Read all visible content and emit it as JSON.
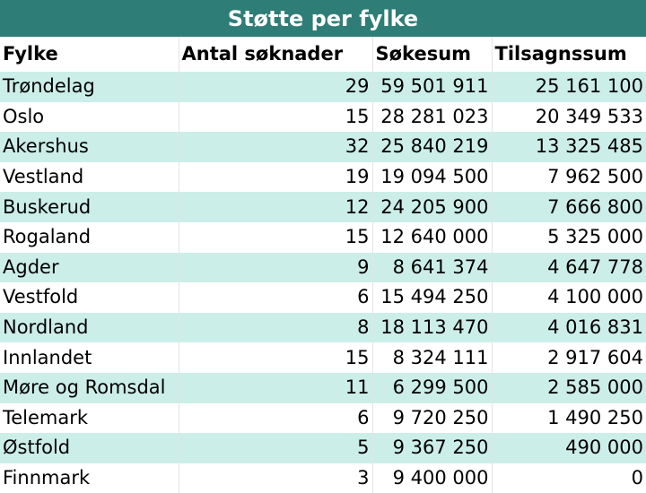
{
  "chart_data": {
    "type": "table",
    "title": "Støtte per fylke",
    "columns": [
      "Fylke",
      "Antal søknader",
      "Søkesum",
      "Tilsagnssum"
    ],
    "rows": [
      [
        "Trøndelag",
        "29",
        "59 501 911",
        "25 161 100"
      ],
      [
        "Oslo",
        "15",
        "28 281 023",
        "20 349 533"
      ],
      [
        "Akershus",
        "32",
        "25 840 219",
        "13 325 485"
      ],
      [
        "Vestland",
        "19",
        "19 094 500",
        "7 962 500"
      ],
      [
        "Buskerud",
        "12",
        "24 205 900",
        "7 666 800"
      ],
      [
        "Rogaland",
        "15",
        "12 640 000",
        "5 325 000"
      ],
      [
        "Agder",
        "9",
        "8 641 374",
        "4 647 778"
      ],
      [
        "Vestfold",
        "6",
        "15 494 250",
        "4 100 000"
      ],
      [
        "Nordland",
        "8",
        "18 113 470",
        "4 016 831"
      ],
      [
        "Innlandet",
        "15",
        "8 324 111",
        "2 917 604"
      ],
      [
        "Møre og Romsdal",
        "11",
        "6 299 500",
        "2 585 000"
      ],
      [
        "Telemark",
        "6",
        "9 720 250",
        "1 490 250"
      ],
      [
        "Østfold",
        "5",
        "9 367 250",
        "490 000"
      ],
      [
        "Finnmark",
        "3",
        "9 400 000",
        "0"
      ]
    ]
  },
  "colors": {
    "header_band": "#2e7d76",
    "stripe": "#cceee8",
    "white": "#ffffff"
  }
}
